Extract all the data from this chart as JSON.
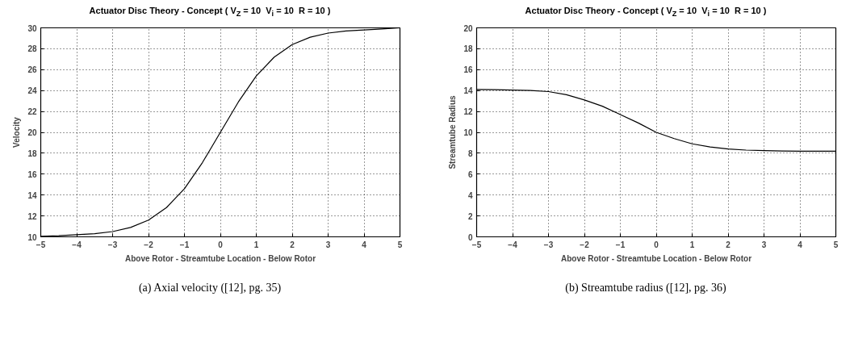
{
  "chart_data": [
    {
      "type": "line",
      "title": "Actuator Disc Theory - Concept ( V$_{Z}$ = 10  V$_{i}$ = 10  R = 10 )",
      "xlabel": "Above Rotor - Streamtube Location - Below Rotor",
      "ylabel": "Velocity",
      "x": [
        -5,
        -4.5,
        -4,
        -3.5,
        -3,
        -2.5,
        -2,
        -1.5,
        -1,
        -0.5,
        0,
        0.5,
        1,
        1.5,
        2,
        2.5,
        3,
        3.5,
        4,
        4.5,
        5
      ],
      "series": [
        {
          "color": "#000000",
          "values": [
            10.05,
            10.1,
            10.2,
            10.3,
            10.5,
            10.9,
            11.6,
            12.8,
            14.6,
            17.1,
            20,
            22.9,
            25.4,
            27.2,
            28.4,
            29.1,
            29.5,
            29.7,
            29.8,
            29.9,
            30
          ]
        }
      ],
      "xlim": [
        -5,
        5
      ],
      "xticks": [
        -5,
        -4,
        -3,
        -2,
        -1,
        0,
        1,
        2,
        3,
        4,
        5
      ],
      "ylim": [
        10,
        30
      ],
      "yticks": [
        10,
        12,
        14,
        16,
        18,
        20,
        22,
        24,
        26,
        28,
        30
      ],
      "grid": true,
      "line_style": "solid",
      "annotations": [
        "(a) Axial velocity ([12], pg. 35)"
      ]
    },
    {
      "type": "line",
      "title": "Actuator Disc Theory - Concept ( V$_{Z}$ = 10  V$_{i}$ = 10  R = 10 )",
      "xlabel": "Above Rotor - Streamtube Location - Below Rotor",
      "ylabel": "Streamtube Radius",
      "x": [
        -5,
        -4.5,
        -4,
        -3.5,
        -3,
        -2.5,
        -2,
        -1.5,
        -1,
        -0.5,
        0,
        0.5,
        1,
        1.5,
        2,
        2.5,
        3,
        3.5,
        4,
        4.5,
        5
      ],
      "series": [
        {
          "color": "#000000",
          "values": [
            14.1,
            14.08,
            14.05,
            14.0,
            13.9,
            13.6,
            13.1,
            12.5,
            11.7,
            10.9,
            10.0,
            9.4,
            8.9,
            8.6,
            8.4,
            8.3,
            8.25,
            8.22,
            8.2,
            8.2,
            8.2
          ]
        }
      ],
      "xlim": [
        -5,
        5
      ],
      "xticks": [
        -5,
        -4,
        -3,
        -2,
        -1,
        0,
        1,
        2,
        3,
        4,
        5
      ],
      "ylim": [
        0,
        20
      ],
      "yticks": [
        0,
        2,
        4,
        6,
        8,
        10,
        12,
        14,
        16,
        18,
        20
      ],
      "grid": true,
      "line_style": "solid",
      "annotations": [
        "(b) Streamtube radius ([12], pg. 36)"
      ]
    }
  ]
}
